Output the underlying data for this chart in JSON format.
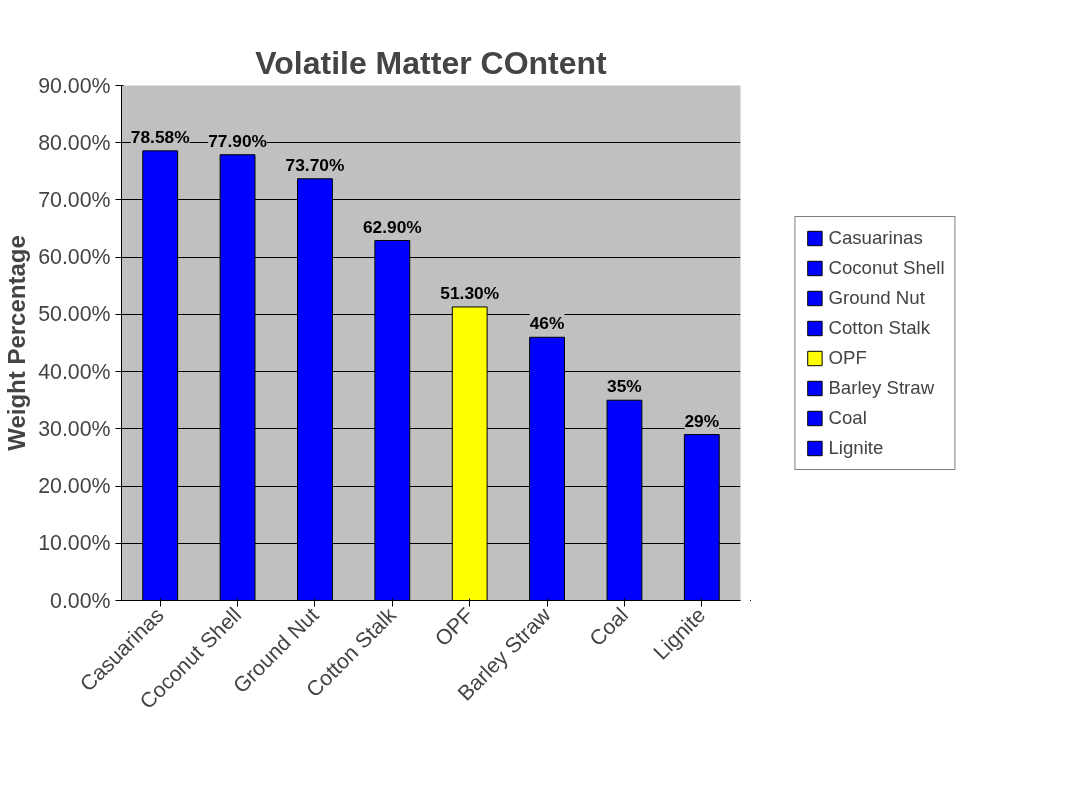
{
  "chart_data": {
    "type": "bar",
    "title": "Volatile Matter COntent",
    "ylabel": "Weight Percentage",
    "categories": [
      "Casuarinas",
      "Coconut Shell",
      "Ground Nut",
      "Cotton Stalk",
      "OPF",
      "Barley Straw",
      "Coal",
      "Lignite"
    ],
    "series": [
      {
        "name": "Casuarinas",
        "color": "#0000ff",
        "values": [
          78.58,
          null,
          null,
          null,
          null,
          null,
          null,
          null
        ],
        "value_labels": [
          "78.58%",
          null,
          null,
          null,
          null,
          null,
          null,
          null
        ]
      },
      {
        "name": "Coconut Shell",
        "color": "#0000ff",
        "values": [
          null,
          77.9,
          null,
          null,
          null,
          null,
          null,
          null
        ],
        "value_labels": [
          null,
          "77.90%",
          null,
          null,
          null,
          null,
          null,
          null
        ]
      },
      {
        "name": "Ground Nut",
        "color": "#0000ff",
        "values": [
          null,
          null,
          73.7,
          null,
          null,
          null,
          null,
          null
        ],
        "value_labels": [
          null,
          null,
          "73.70%",
          null,
          null,
          null,
          null,
          null
        ]
      },
      {
        "name": "Cotton Stalk",
        "color": "#0000ff",
        "values": [
          null,
          null,
          null,
          62.9,
          null,
          null,
          null,
          null
        ],
        "value_labels": [
          null,
          null,
          null,
          "62.90%",
          null,
          null,
          null,
          null
        ]
      },
      {
        "name": "OPF",
        "color": "#ffff00",
        "values": [
          null,
          null,
          null,
          null,
          51.3,
          null,
          null,
          null
        ],
        "value_labels": [
          null,
          null,
          null,
          null,
          "51.30%",
          null,
          null,
          null
        ]
      },
      {
        "name": "Barley Straw",
        "color": "#0000ff",
        "values": [
          null,
          null,
          null,
          null,
          null,
          46,
          null,
          null
        ],
        "value_labels": [
          null,
          null,
          null,
          null,
          null,
          "46%",
          null,
          null
        ]
      },
      {
        "name": "Coal",
        "color": "#0000ff",
        "values": [
          null,
          null,
          null,
          null,
          null,
          null,
          35,
          null
        ],
        "value_labels": [
          null,
          null,
          null,
          null,
          null,
          null,
          "35%",
          null
        ]
      },
      {
        "name": "Lignite",
        "color": "#0000ff",
        "values": [
          null,
          null,
          null,
          null,
          null,
          null,
          null,
          29
        ],
        "value_labels": [
          null,
          null,
          null,
          null,
          null,
          null,
          null,
          "29%"
        ]
      }
    ],
    "ylim": [
      0,
      90
    ],
    "yticks": [
      {
        "value": 0,
        "label": "0.00%"
      },
      {
        "value": 10,
        "label": "10.00%"
      },
      {
        "value": 20,
        "label": "20.00%"
      },
      {
        "value": 30,
        "label": "30.00%"
      },
      {
        "value": 40,
        "label": "40.00%"
      },
      {
        "value": 50,
        "label": "50.00%"
      },
      {
        "value": 60,
        "label": "60.00%"
      },
      {
        "value": 70,
        "label": "70.00%"
      },
      {
        "value": 80,
        "label": "80.00%"
      },
      {
        "value": 90,
        "label": "90.00%"
      }
    ],
    "grid": "y",
    "legend": "right"
  }
}
